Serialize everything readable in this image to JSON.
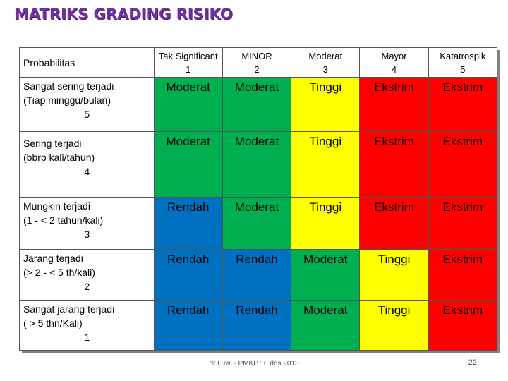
{
  "title": "MATRIKS GRADING RISIKO",
  "colors": {
    "Rendah": "#0070c0",
    "Moderat": "#00b050",
    "Tinggi": "#ffff00",
    "Ekstrim": "#ff0000"
  },
  "header": {
    "probability_label": "Probabilitas",
    "severities": [
      {
        "name": "Tak Significant",
        "level": "1"
      },
      {
        "name": "MINOR",
        "level": "2"
      },
      {
        "name": "Moderat",
        "level": "3"
      },
      {
        "name": "Mayor",
        "level": "4"
      },
      {
        "name": "Katatrospik",
        "level": "5"
      }
    ]
  },
  "rows": [
    {
      "lines": [
        "Sangat sering terjadi",
        "(Tiap minggu/bulan)"
      ],
      "level": "5",
      "cells": [
        "Moderat",
        "Moderat",
        "Tinggi",
        "Ekstrim",
        "Ekstrim"
      ]
    },
    {
      "lines": [
        "Sering terjadi",
        "(bbrp kali/tahun)"
      ],
      "level": "4",
      "cells": [
        "Moderat",
        "Moderat",
        "Tinggi",
        "Ekstrim",
        "Ekstrim"
      ]
    },
    {
      "lines": [
        "Mungkin terjadi",
        "(1 -  < 2 tahun/kali)"
      ],
      "level": "3",
      "cells": [
        "Rendah",
        "Moderat",
        "Tinggi",
        "Ekstrim",
        "Ekstrim"
      ]
    },
    {
      "lines": [
        "Jarang terjadi",
        "(> 2 - < 5 th/kali)"
      ],
      "level": "2",
      "cells": [
        "Rendah",
        "Rendah",
        "Moderat",
        "Tinggi",
        "Ekstrim"
      ]
    },
    {
      "lines": [
        "Sangat jarang terjadi",
        "( > 5 thn/Kali)"
      ],
      "level": "1",
      "cells": [
        "Rendah",
        "Rendah",
        "Moderat",
        "Tinggi",
        "Ekstrim"
      ]
    }
  ],
  "footer": {
    "credit": "dr Luwi - PMKP 10 des 2013",
    "page": "22"
  }
}
